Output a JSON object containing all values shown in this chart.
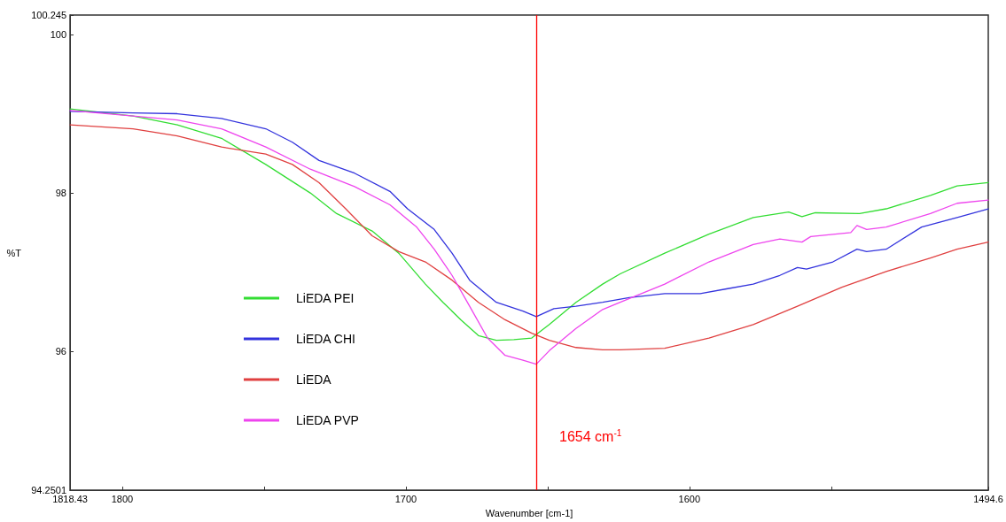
{
  "chart_data": {
    "type": "line",
    "xlabel": "Wavenumber [cm-1]",
    "ylabel": "%T",
    "xlim": [
      1818.43,
      1494.6
    ],
    "xticks": [
      1818.43,
      1800,
      {
        "value": 1750,
        "label": null
      },
      1700,
      {
        "value": 1650,
        "label": null
      },
      1600,
      {
        "value": 1550,
        "label": null
      },
      1494.6
    ],
    "ylim": [
      94.2501,
      100.245
    ],
    "yticks": [
      94.2501,
      96,
      98,
      100,
      100.245
    ],
    "grid": false,
    "legend": "left",
    "marker": "none",
    "line_style": "solid",
    "ref_lines": [
      {
        "axis": "x",
        "value": 1654,
        "label": "1654 cm$^{-1}$",
        "color": "#ff0000"
      }
    ],
    "series": [
      {
        "name": "LiEDA PEI",
        "color": "#33dd33",
        "x": [
          1818.4,
          1796.2,
          1780.6,
          1765.0,
          1749.4,
          1733.7,
          1724.4,
          1711.9,
          1702.5,
          1693.1,
          1686.9,
          1680.6,
          1674.4,
          1668.1,
          1661.9,
          1655.6,
          1649.4,
          1640.0,
          1630.6,
          1624.4,
          1608.7,
          1593.1,
          1577.5,
          1565.0,
          1560.3,
          1555.6,
          1540.0,
          1530.6,
          1515.0,
          1505.6,
          1494.6
        ],
        "values": [
          99.06,
          98.97,
          98.86,
          98.69,
          98.36,
          98.0,
          97.74,
          97.52,
          97.24,
          96.85,
          96.62,
          96.4,
          96.2,
          96.14,
          96.15,
          96.17,
          96.34,
          96.62,
          96.85,
          96.98,
          97.24,
          97.48,
          97.69,
          97.76,
          97.7,
          97.75,
          97.74,
          97.8,
          97.97,
          98.09,
          98.13
        ]
      },
      {
        "name": "LiEDA CHI",
        "color": "#3333dd",
        "x": [
          1818.4,
          1796.2,
          1780.6,
          1765.0,
          1749.4,
          1740.0,
          1730.6,
          1718.1,
          1705.6,
          1699.4,
          1690.0,
          1683.7,
          1677.5,
          1668.1,
          1658.7,
          1654.0,
          1647.8,
          1640.0,
          1630.6,
          1621.2,
          1608.7,
          1596.2,
          1586.9,
          1577.5,
          1568.1,
          1561.9,
          1558.7,
          1549.4,
          1540.9,
          1537.5,
          1530.6,
          1518.1,
          1505.6,
          1494.6
        ],
        "values": [
          99.03,
          99.01,
          99.0,
          98.94,
          98.81,
          98.64,
          98.41,
          98.25,
          98.02,
          97.8,
          97.54,
          97.24,
          96.9,
          96.62,
          96.51,
          96.44,
          96.54,
          96.57,
          96.62,
          96.68,
          96.73,
          96.73,
          96.79,
          96.85,
          96.96,
          97.06,
          97.04,
          97.13,
          97.29,
          97.26,
          97.29,
          97.57,
          97.69,
          97.8
        ]
      },
      {
        "name": "LiEDA",
        "color": "#e04040",
        "x": [
          1818.4,
          1796.2,
          1780.6,
          1765.0,
          1749.4,
          1740.0,
          1730.6,
          1721.2,
          1711.9,
          1702.5,
          1693.1,
          1683.7,
          1674.4,
          1665.0,
          1655.6,
          1649.4,
          1640.0,
          1630.6,
          1624.4,
          1608.7,
          1593.1,
          1577.5,
          1561.9,
          1546.2,
          1530.6,
          1515.0,
          1505.6,
          1494.6
        ],
        "values": [
          98.86,
          98.81,
          98.72,
          98.58,
          98.49,
          98.36,
          98.13,
          97.8,
          97.46,
          97.26,
          97.13,
          96.9,
          96.62,
          96.4,
          96.23,
          96.14,
          96.05,
          96.02,
          96.02,
          96.04,
          96.17,
          96.34,
          96.57,
          96.81,
          97.01,
          97.18,
          97.29,
          97.38
        ]
      },
      {
        "name": "LiEDA PVP",
        "color": "#ee44ee",
        "x": [
          1818.4,
          1796.2,
          1780.6,
          1765.0,
          1749.4,
          1733.7,
          1718.1,
          1705.6,
          1696.2,
          1690.0,
          1683.7,
          1677.5,
          1671.2,
          1665.0,
          1658.7,
          1654.0,
          1649.4,
          1640.0,
          1630.6,
          1624.4,
          1608.7,
          1593.1,
          1577.5,
          1568.1,
          1560.3,
          1557.2,
          1543.1,
          1540.9,
          1537.5,
          1530.6,
          1515.0,
          1505.6,
          1494.6
        ],
        "values": [
          99.04,
          98.97,
          98.92,
          98.81,
          98.58,
          98.3,
          98.08,
          97.85,
          97.57,
          97.29,
          96.96,
          96.57,
          96.17,
          95.95,
          95.89,
          95.84,
          96.01,
          96.29,
          96.53,
          96.62,
          96.85,
          97.13,
          97.35,
          97.42,
          97.38,
          97.45,
          97.5,
          97.59,
          97.54,
          97.57,
          97.74,
          97.87,
          97.91
        ]
      }
    ]
  }
}
